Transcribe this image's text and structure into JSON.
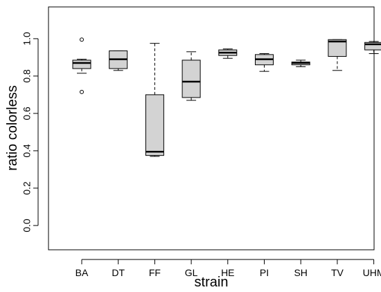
{
  "chart_data": {
    "type": "boxplot",
    "title": "",
    "xlabel": "strain",
    "ylabel": "ratio colorless",
    "ylim": [
      -0.13,
      1.17
    ],
    "yticks": [
      0.0,
      0.2,
      0.4,
      0.6,
      0.8,
      1.0
    ],
    "ytick_labels": [
      "0.0",
      "0.2",
      "0.4",
      "0.6",
      "0.8",
      "1.0"
    ],
    "categories": [
      "BA",
      "DT",
      "FF",
      "GL",
      "HE",
      "PI",
      "SH",
      "TV",
      "UHM"
    ],
    "boxes": [
      {
        "category": "BA",
        "whisker_low": 0.815,
        "q1": 0.84,
        "median": 0.87,
        "q3": 0.885,
        "whisker_high": 0.89,
        "outliers": [
          0.995,
          0.715
        ]
      },
      {
        "category": "DT",
        "whisker_low": 0.83,
        "q1": 0.84,
        "median": 0.89,
        "q3": 0.935,
        "whisker_high": 0.935,
        "outliers": []
      },
      {
        "category": "FF",
        "whisker_low": 0.37,
        "q1": 0.375,
        "median": 0.395,
        "q3": 0.7,
        "whisker_high": 0.975,
        "outliers": []
      },
      {
        "category": "GL",
        "whisker_low": 0.67,
        "q1": 0.685,
        "median": 0.77,
        "q3": 0.885,
        "whisker_high": 0.93,
        "outliers": []
      },
      {
        "category": "HE",
        "whisker_low": 0.895,
        "q1": 0.91,
        "median": 0.925,
        "q3": 0.94,
        "whisker_high": 0.945,
        "outliers": []
      },
      {
        "category": "PI",
        "whisker_low": 0.825,
        "q1": 0.86,
        "median": 0.89,
        "q3": 0.915,
        "whisker_high": 0.92,
        "outliers": []
      },
      {
        "category": "SH",
        "whisker_low": 0.85,
        "q1": 0.86,
        "median": 0.87,
        "q3": 0.875,
        "whisker_high": 0.885,
        "outliers": []
      },
      {
        "category": "TV",
        "whisker_low": 0.83,
        "q1": 0.905,
        "median": 0.985,
        "q3": 0.995,
        "whisker_high": 0.995,
        "outliers": []
      },
      {
        "category": "UHM",
        "whisker_low": 0.92,
        "q1": 0.94,
        "median": 0.97,
        "q3": 0.98,
        "whisker_high": 0.985,
        "outliers": []
      }
    ],
    "grid": false,
    "legend": "none",
    "colors": {
      "box_fill": "#d3d3d3",
      "stroke": "#000000",
      "background": "#ffffff"
    }
  }
}
